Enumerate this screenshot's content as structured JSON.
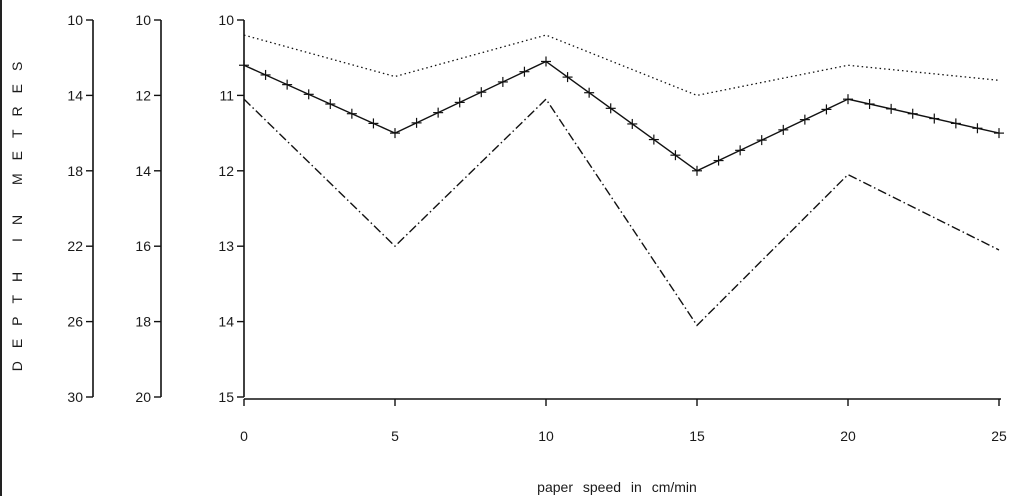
{
  "chart_data": {
    "type": "line",
    "xlabel": "paper speed in cm/min",
    "ylabel": "DEPTH IN METRES",
    "x": [
      0,
      5,
      10,
      15,
      20,
      25
    ],
    "xlim": [
      0,
      25
    ],
    "x_ticks": [
      "0",
      "5",
      "10",
      "15",
      "20",
      "25"
    ],
    "y_axes": [
      {
        "ylim": [
          10,
          30
        ],
        "ticks": [
          "10",
          "14",
          "18",
          "22",
          "26",
          "30"
        ],
        "inverted": true
      },
      {
        "ylim": [
          10,
          20
        ],
        "ticks": [
          "10",
          "12",
          "14",
          "16",
          "18",
          "20"
        ],
        "inverted": true
      },
      {
        "ylim": [
          10,
          15
        ],
        "ticks": [
          "10",
          "11",
          "12",
          "13",
          "14",
          "15"
        ],
        "inverted": true
      }
    ],
    "grid": false,
    "series": [
      {
        "style": "dotted",
        "values": [
          10.2,
          10.75,
          10.2,
          11.0,
          10.6,
          10.8
        ]
      },
      {
        "style": "plus-marked",
        "values": [
          10.6,
          11.5,
          10.55,
          12.0,
          11.05,
          11.5
        ]
      },
      {
        "style": "dash-dot",
        "values": [
          11.05,
          13.0,
          11.05,
          14.05,
          12.05,
          13.05
        ]
      }
    ]
  }
}
